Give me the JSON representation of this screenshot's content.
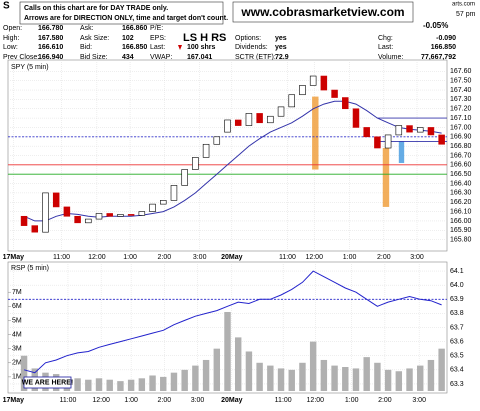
{
  "header": {
    "symbol": "S",
    "note_line1": "Calls on this chart are for DAY TRADE only.",
    "note_line2": "Arrows are for DIRECTION ONLY, time and target don't count.",
    "website": "www.cobrasmarketview.com",
    "overlay": "LS H RS",
    "source": "arts.com",
    "time": "57 pm",
    "pct_change": "-0.05%",
    "quote": [
      [
        [
          "Open:",
          "166.780"
        ],
        [
          "Ask:",
          "166.860"
        ],
        [
          "P/E:",
          ""
        ],
        null,
        null
      ],
      [
        [
          "High:",
          "167.580"
        ],
        [
          "Ask Size:",
          "102"
        ],
        [
          "EPS:",
          ""
        ],
        [
          "Options:",
          "yes"
        ],
        [
          "Chg:",
          "-0.090"
        ]
      ],
      [
        [
          "Low:",
          "166.610"
        ],
        [
          "Bid:",
          "166.850"
        ],
        [
          "Last:",
          "100 shrs"
        ],
        [
          "Dividends:",
          "yes"
        ],
        [
          "Last:",
          "166.850"
        ]
      ],
      [
        [
          "Prev Close:",
          "166.940"
        ],
        [
          "Bid Size:",
          "434"
        ],
        [
          "VWAP:",
          "167.041"
        ],
        [
          "SCTR (ETF):",
          "72.9"
        ],
        [
          "Volume:",
          "77,667,792"
        ]
      ]
    ]
  },
  "chart_data": [
    {
      "type": "candlestick",
      "title": "SPY (5 min)",
      "open": [
        166.05,
        165.95,
        165.88,
        166.3,
        166.15,
        166.05,
        165.98,
        166.02,
        166.08,
        166.05,
        166.07,
        166.06,
        166.1,
        166.18,
        166.22,
        166.38,
        166.55,
        166.68,
        166.82,
        166.95,
        167.08,
        167.02,
        167.15,
        167.05,
        167.12,
        167.22,
        167.35,
        167.45,
        167.55,
        167.4,
        167.32,
        167.2,
        167.0,
        166.9,
        166.78,
        166.92,
        167.02,
        166.95,
        167.0,
        166.92
      ],
      "close": [
        165.95,
        165.88,
        166.3,
        166.15,
        166.05,
        165.98,
        166.02,
        166.08,
        166.05,
        166.07,
        166.06,
        166.1,
        166.18,
        166.22,
        166.38,
        166.55,
        166.68,
        166.82,
        166.9,
        167.08,
        167.02,
        167.15,
        167.05,
        167.12,
        167.22,
        167.35,
        167.45,
        167.55,
        167.4,
        167.32,
        167.2,
        167.0,
        166.9,
        166.78,
        166.92,
        167.02,
        166.95,
        167.0,
        166.92,
        166.82
      ],
      "ma": [
        166.05,
        166.0,
        166.0,
        166.05,
        166.08,
        166.07,
        166.05,
        166.04,
        166.05,
        166.05,
        166.05,
        166.06,
        166.08,
        166.1,
        166.15,
        166.22,
        166.3,
        166.4,
        166.5,
        166.6,
        166.7,
        166.8,
        166.88,
        166.95,
        167.0,
        167.05,
        167.12,
        167.2,
        167.25,
        167.28,
        167.28,
        167.25,
        167.18,
        167.1,
        167.05,
        167.0,
        166.98,
        166.97,
        166.96,
        166.94
      ],
      "up_color": "#ffffff",
      "down_color": "#cc0000",
      "ma_color": "#3333aa",
      "xlim": [
        -1.5,
        39.5
      ],
      "ylim": [
        165.7,
        167.7
      ],
      "xticks": [
        {
          "value": -1,
          "label": "17May"
        },
        {
          "value": 3.5,
          "label": "11:00"
        },
        {
          "value": 6.8,
          "label": "12:00"
        },
        {
          "value": 9.9,
          "label": "1:00"
        },
        {
          "value": 13.1,
          "label": "2:00"
        },
        {
          "value": 16.4,
          "label": "3:00"
        },
        {
          "value": 19.4,
          "label": "20May"
        },
        {
          "value": 24.6,
          "label": "11:00"
        },
        {
          "value": 27.1,
          "label": "12:00"
        },
        {
          "value": 30.4,
          "label": "1:00"
        },
        {
          "value": 33.6,
          "label": "2:00"
        },
        {
          "value": 36.7,
          "label": "3:00"
        }
      ],
      "yticks": [
        {
          "value": 167.6,
          "label": "167.60"
        },
        {
          "value": 167.5,
          "label": "167.50"
        },
        {
          "value": 167.4,
          "label": "167.40"
        },
        {
          "value": 167.3,
          "label": "167.30"
        },
        {
          "value": 167.2,
          "label": "167.20"
        },
        {
          "value": 167.1,
          "label": "167.10"
        },
        {
          "value": 167,
          "label": "167.00"
        },
        {
          "value": 166.9,
          "label": "166.90"
        },
        {
          "value": 166.8,
          "label": "166.80"
        },
        {
          "value": 166.7,
          "label": "166.70"
        },
        {
          "value": 166.6,
          "label": "166.60"
        },
        {
          "value": 166.5,
          "label": "166.50"
        },
        {
          "value": 166.4,
          "label": "166.40"
        },
        {
          "value": 166.3,
          "label": "166.30"
        },
        {
          "value": 166.2,
          "label": "166.20"
        },
        {
          "value": 166.1,
          "label": "166.10"
        },
        {
          "value": 166,
          "label": "166.00"
        },
        {
          "value": 165.9,
          "label": "165.90"
        },
        {
          "value": 165.8,
          "label": "165.80"
        }
      ],
      "grid": true,
      "levels": [
        {
          "value": 166.6,
          "color": "#ee3333",
          "dash": false
        },
        {
          "value": 166.5,
          "color": "#22aa22",
          "dash": false
        },
        {
          "value": 166.9,
          "color": "#3333cc",
          "dash": true
        },
        {
          "value": 167.1,
          "color": "#3333aa",
          "dash": false,
          "from": 33
        },
        {
          "value": 166.85,
          "color": "#3333aa",
          "dash": false,
          "from": 33
        }
      ],
      "zones": [
        {
          "x": [
            26.9,
            27.5
          ],
          "y": [
            167.33,
            166.55
          ],
          "color": "#f0a040"
        },
        {
          "x": [
            33.5,
            34.1
          ],
          "y": [
            166.78,
            166.15
          ],
          "color": "#f0a040"
        },
        {
          "x": [
            35.0,
            35.5
          ],
          "y": [
            166.85,
            166.62
          ],
          "color": "#4a9ee0"
        }
      ]
    },
    {
      "type": "line",
      "title": "RSP (5 min)",
      "annotation": "WE ARE HERE!",
      "series": [
        {
          "type": "bar",
          "axis": "y2",
          "color": "#b0b0b0",
          "values": [
            2500000,
            1600000,
            1300000,
            1200000,
            1000000,
            900000,
            800000,
            900000,
            800000,
            700000,
            800000,
            900000,
            1100000,
            1000000,
            1300000,
            1500000,
            1800000,
            2200000,
            3000000,
            5600000,
            3800000,
            2800000,
            2000000,
            1800000,
            1600000,
            1500000,
            2000000,
            3500000,
            2200000,
            1800000,
            1700000,
            1600000,
            2400000,
            2000000,
            1500000,
            1400000,
            1600000,
            1800000,
            2200000,
            3000000
          ]
        },
        {
          "type": "line",
          "color": "#2222cc",
          "values": [
            63.4,
            63.38,
            63.45,
            63.47,
            63.5,
            63.52,
            63.53,
            63.56,
            63.58,
            63.6,
            63.62,
            63.64,
            63.66,
            63.68,
            63.72,
            63.75,
            63.78,
            63.8,
            63.82,
            63.85,
            63.88,
            63.87,
            63.9,
            63.9,
            63.93,
            63.97,
            64.02,
            64.1,
            64.06,
            64.02,
            63.98,
            63.95,
            63.9,
            63.85,
            63.88,
            63.9,
            63.92,
            63.9,
            63.89,
            63.86
          ]
        }
      ],
      "xlim": [
        -1.5,
        39.5
      ],
      "ylim": [
        63.25,
        64.15
      ],
      "y2lim": [
        0,
        9000000
      ],
      "xticks": [
        {
          "value": -1,
          "label": "17May"
        },
        {
          "value": 4.1,
          "label": "11:00"
        },
        {
          "value": 7.2,
          "label": "12:00"
        },
        {
          "value": 10,
          "label": "1:00"
        },
        {
          "value": 13.1,
          "label": "2:00"
        },
        {
          "value": 16.2,
          "label": "3:00"
        },
        {
          "value": 19.4,
          "label": "20May"
        },
        {
          "value": 24.2,
          "label": "11:00"
        },
        {
          "value": 27.2,
          "label": "12:00"
        },
        {
          "value": 30.6,
          "label": "1:00"
        },
        {
          "value": 33.7,
          "label": "2:00"
        },
        {
          "value": 36.9,
          "label": "3:00"
        }
      ],
      "yticks": [
        64.1,
        {
          "value": 64,
          "label": "64.0"
        },
        63.9,
        63.8,
        63.7,
        63.6,
        63.5,
        63.4,
        63.3
      ],
      "y2ticks": [
        {
          "value": 7000000,
          "label": "7M"
        },
        {
          "value": 6000000,
          "label": "6M"
        },
        {
          "value": 5000000,
          "label": "5M"
        },
        {
          "value": 4000000,
          "label": "4M"
        },
        {
          "value": 3000000,
          "label": "3M"
        },
        {
          "value": 2000000,
          "label": "2M"
        },
        {
          "value": 1000000,
          "label": "1M"
        }
      ],
      "grid": true,
      "levels": [
        {
          "value": 63.9,
          "color": "#2222cc",
          "dash": true
        }
      ]
    }
  ]
}
